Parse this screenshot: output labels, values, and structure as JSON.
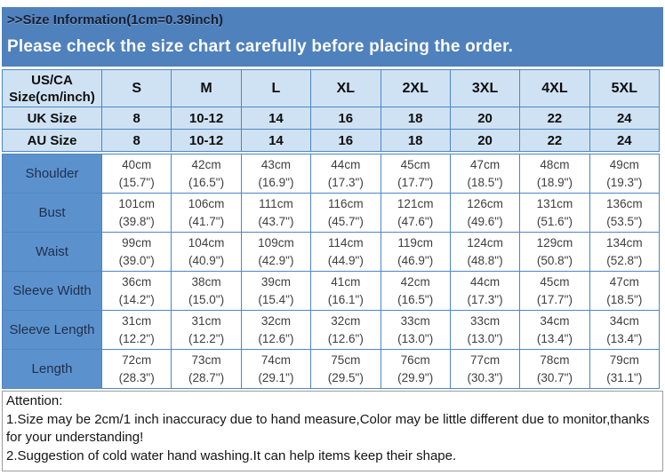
{
  "banner": {
    "title": ">>Size Information(1cm=0.39inch)",
    "subtitle": "Please check the size chart carefully before placing the order."
  },
  "size_table": {
    "header": {
      "label_line1": "US/CA",
      "label_line2": "Size(cm/inch)",
      "sizes": [
        "S",
        "M",
        "L",
        "XL",
        "2XL",
        "3XL",
        "4XL",
        "5XL"
      ]
    },
    "size_rows": [
      {
        "label": "UK Size",
        "values": [
          "8",
          "10-12",
          "14",
          "16",
          "18",
          "20",
          "22",
          "24"
        ]
      },
      {
        "label": "AU Size",
        "values": [
          "8",
          "10-12",
          "14",
          "16",
          "18",
          "20",
          "22",
          "24"
        ]
      }
    ],
    "measurement_rows": [
      {
        "label": "Shoulder",
        "cm": [
          "40cm",
          "42cm",
          "43cm",
          "44cm",
          "45cm",
          "47cm",
          "48cm",
          "49cm"
        ],
        "inch": [
          "(15.7\")",
          "(16.5\")",
          "(16.9\")",
          "(17.3\")",
          "(17.7\")",
          "(18.5\")",
          "(18.9\")",
          "(19.3\")"
        ]
      },
      {
        "label": "Bust",
        "cm": [
          "101cm",
          "106cm",
          "111cm",
          "116cm",
          "121cm",
          "126cm",
          "131cm",
          "136cm"
        ],
        "inch": [
          "(39.8\")",
          "(41.7\")",
          "(43.7\")",
          "(45.7\")",
          "(47.6\")",
          "(49.6\")",
          "(51.6\")",
          "(53.5\")"
        ]
      },
      {
        "label": "Waist",
        "cm": [
          "99cm",
          "104cm",
          "109cm",
          "114cm",
          "119cm",
          "124cm",
          "129cm",
          "134cm"
        ],
        "inch": [
          "(39.0\")",
          "(40.9\")",
          "(42.9\")",
          "(44.9\")",
          "(46.9\")",
          "(48.8\")",
          "(50.8\")",
          "(52.8\")"
        ]
      },
      {
        "label": "Sleeve Width",
        "cm": [
          "36cm",
          "38cm",
          "39cm",
          "41cm",
          "42cm",
          "44cm",
          "45cm",
          "47cm"
        ],
        "inch": [
          "(14.2\")",
          "(15.0\")",
          "(15.4\")",
          "(16.1\")",
          "(16.5\")",
          "(17.3\")",
          "(17.7\")",
          "(18.5\")"
        ]
      },
      {
        "label": "Sleeve Length",
        "cm": [
          "31cm",
          "31cm",
          "32cm",
          "32cm",
          "33cm",
          "33cm",
          "34cm",
          "34cm"
        ],
        "inch": [
          "(12.2\")",
          "(12.2\")",
          "(12.6\")",
          "(12.6\")",
          "(13.0\")",
          "(13.0\")",
          "(13.4\")",
          "(13.4\")"
        ]
      },
      {
        "label": "Length",
        "cm": [
          "72cm",
          "73cm",
          "74cm",
          "75cm",
          "76cm",
          "77cm",
          "78cm",
          "79cm"
        ],
        "inch": [
          "(28.3\")",
          "(28.7\")",
          "(29.1\")",
          "(29.5\")",
          "(29.9\")",
          "(30.3\")",
          "(30.7\")",
          "(31.1\")"
        ]
      }
    ]
  },
  "attention": {
    "heading": "Attention:",
    "lines": [
      "1.Size may be 2cm/1 inch inaccuracy due to hand measure,Color may be little different due to monitor,thanks for your understanding!",
      "2.Suggestion of cold water hand washing.It can help items keep their shape."
    ]
  },
  "colors": {
    "banner_bg": "#4f81bd",
    "header_cell_bg": "#cfe2f3",
    "label_cell_bg": "#5b92ce",
    "grid_border": "#4e86c4",
    "attention_border": "#9b9b9b"
  }
}
